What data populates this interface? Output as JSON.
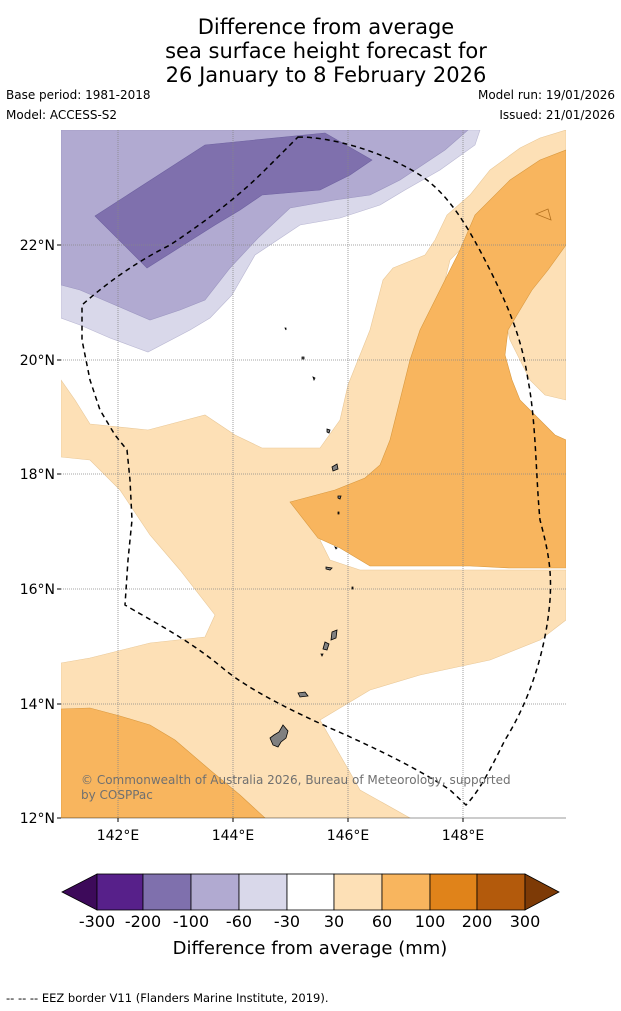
{
  "title": {
    "line1": "Difference from average",
    "line2": "sea surface height forecast for",
    "line3": "26 January to 8 February 2026"
  },
  "meta": {
    "base_period": "Base period: 1981-2018",
    "model": "Model: ACCESS-S2",
    "model_run": "Model run: 19/01/2026",
    "issued": "Issued: 21/01/2026"
  },
  "map": {
    "lat_labels": [
      "22°N",
      "20°N",
      "18°N",
      "16°N",
      "14°N",
      "12°N"
    ],
    "lon_labels": [
      "142°E",
      "144°E",
      "146°E",
      "148°E"
    ],
    "copyright_line1": "© Commonwealth of Australia 2026, Bureau of Meteorology, supported",
    "copyright_line2": "by COSPPac"
  },
  "colorbar": {
    "title": "Difference from average (mm)",
    "tick_labels": [
      "-300",
      "-200",
      "-100",
      "-60",
      "-30",
      "30",
      "60",
      "100",
      "200",
      "300"
    ],
    "colors": [
      "#3d0a5a",
      "#57208a",
      "#7f70ad",
      "#b1aad1",
      "#d9d8ea",
      "#ffffff",
      "#fde0b6",
      "#f8b55e",
      "#e0831a",
      "#b35a0c",
      "#7d3a06"
    ]
  },
  "footer": {
    "legend": "--  --  -- EEZ border V11 (Flanders Marine Institute, 2019)."
  }
}
